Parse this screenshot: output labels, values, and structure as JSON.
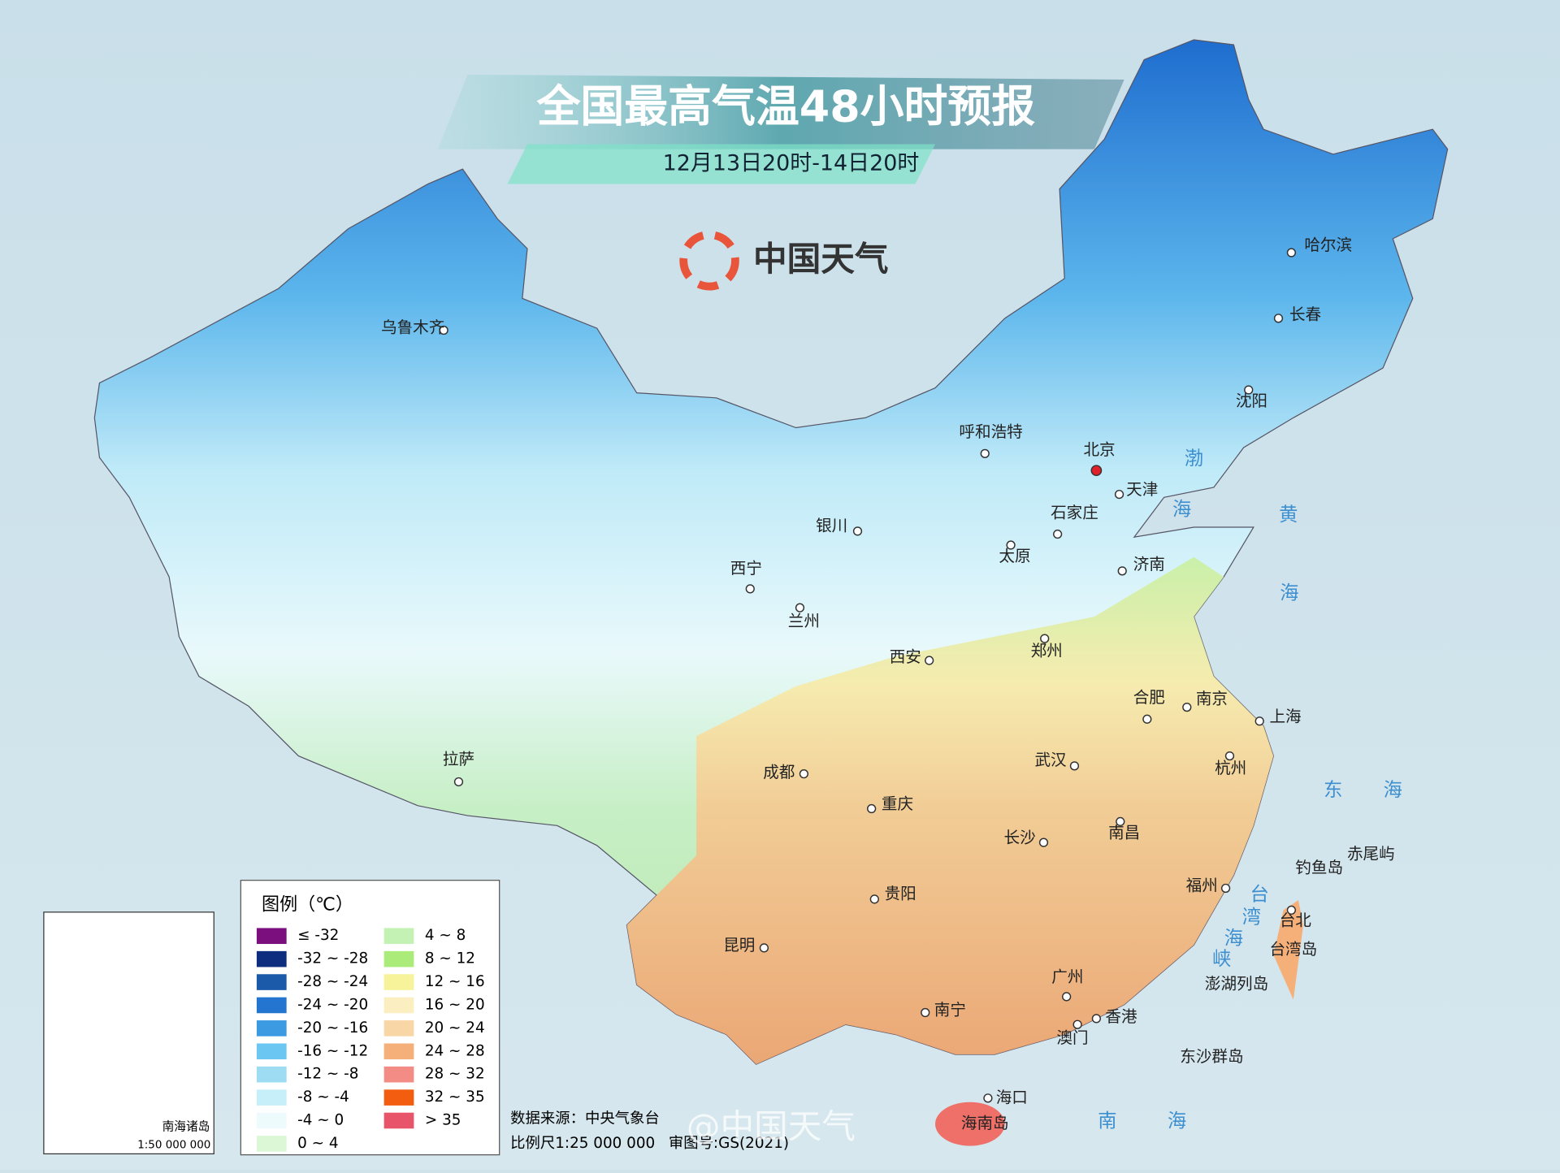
{
  "header": {
    "title": "全国最高气温48小时预报",
    "subtitle": "12月13日20时-14日20时",
    "brand": "中国天气"
  },
  "cities": [
    "乌鲁木齐",
    "哈尔滨",
    "长春",
    "沈阳",
    "呼和浩特",
    "北京",
    "天津",
    "石家庄",
    "太原",
    "济南",
    "银川",
    "西宁",
    "兰州",
    "西安",
    "郑州",
    "合肥",
    "南京",
    "上海",
    "杭州",
    "武汉",
    "成都",
    "重庆",
    "拉萨",
    "长沙",
    "南昌",
    "贵阳",
    "福州",
    "台北",
    "昆明",
    "广州",
    "南宁",
    "香港",
    "澳门",
    "海口"
  ],
  "places": [
    "台湾岛",
    "钓鱼岛",
    "赤尾屿",
    "澎湖列岛",
    "东沙群岛",
    "海南岛"
  ],
  "seas": [
    "渤",
    "海",
    "黄",
    "海",
    "东",
    "海",
    "台",
    "湾",
    "海",
    "峡",
    "南",
    "海"
  ],
  "legend": {
    "title": "图例（℃）",
    "items": [
      {
        "label": "≤ -32",
        "color": "#7b0f7e"
      },
      {
        "label": "-32 ~ -28",
        "color": "#0d2e7e"
      },
      {
        "label": "-28 ~ -24",
        "color": "#1b5aa8"
      },
      {
        "label": "-24 ~ -20",
        "color": "#2375cf"
      },
      {
        "label": "-20 ~ -16",
        "color": "#3c9ae2"
      },
      {
        "label": "-16 ~ -12",
        "color": "#6cc6f2"
      },
      {
        "label": "-12 ~ -8",
        "color": "#9ddcf3"
      },
      {
        "label": "-8 ~ -4",
        "color": "#c7effa"
      },
      {
        "label": "-4 ~ 0",
        "color": "#eefbfd"
      },
      {
        "label": "0 ~ 4",
        "color": "#dcf7d6"
      },
      {
        "label": "4 ~ 8",
        "color": "#c4f1b4"
      },
      {
        "label": "8 ~ 12",
        "color": "#aaeb7a"
      },
      {
        "label": "12 ~ 16",
        "color": "#f7f39a"
      },
      {
        "label": "16 ~ 20",
        "color": "#fbefc2"
      },
      {
        "label": "20 ~ 24",
        "color": "#f8d6a6"
      },
      {
        "label": "24 ~ 28",
        "color": "#f5b07a"
      },
      {
        "label": "28 ~ 32",
        "color": "#f28c85"
      },
      {
        "label": "32 ~ 35",
        "color": "#f25d0f"
      },
      {
        "label": "> 35",
        "color": "#e8546a"
      }
    ]
  },
  "footer": {
    "source": "数据来源：中央气象台",
    "scale": "比例尺1:25 000 000",
    "approval": "审图号:GS(2021)",
    "watermark": "@中国天气"
  },
  "inset": {
    "label": "南海诸岛",
    "scale": "1:50 000 000"
  }
}
